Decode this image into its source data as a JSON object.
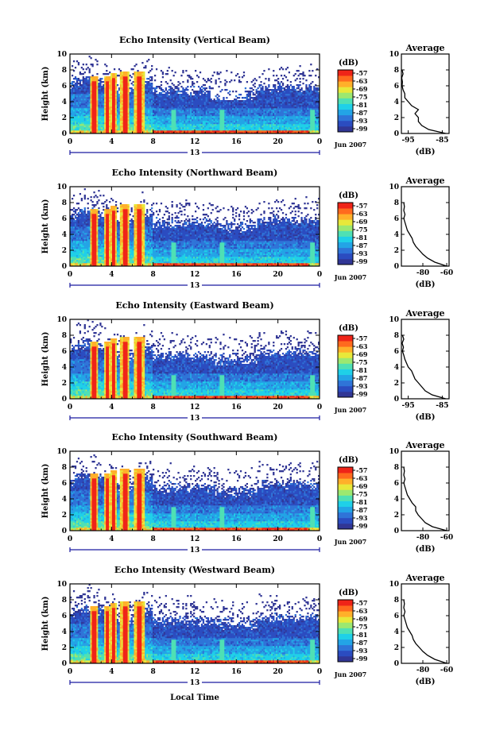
{
  "chart_data": [
    {
      "type": "heatmap",
      "title": "Echo Intensity (Vertical Beam)",
      "ylabel": "Height (km)",
      "ylim": [
        0,
        10
      ],
      "y_ticks": [
        "0",
        "2",
        "4",
        "6",
        "8",
        "10"
      ],
      "x_ticks": [
        "0",
        "4",
        "8",
        "12",
        "16",
        "20",
        "0"
      ],
      "date_day": "13",
      "date_label": "Jun 2007",
      "colorbar": {
        "unit": "(dB)",
        "ticks": [
          "-57",
          "-63",
          "-69",
          "-75",
          "-81",
          "-87",
          "-93",
          "-99"
        ]
      },
      "profile": {
        "title": "Average",
        "xlabel": "(dB)",
        "x_ticks": [
          "-95",
          "-85"
        ],
        "xlim": [
          -97,
          -83
        ],
        "heights": [
          0,
          0.5,
          1,
          1.5,
          2,
          2.5,
          3,
          3.5,
          4,
          4.5,
          5,
          5.5,
          6,
          6.5,
          7,
          7.5,
          8
        ],
        "values": [
          -84,
          -89,
          -91,
          -92,
          -92,
          -93,
          -92,
          -94,
          -95,
          -96,
          -96,
          -96.5,
          -96.8,
          -96.7,
          -96.9,
          -96.5,
          -96.8
        ]
      }
    },
    {
      "type": "heatmap",
      "title": "Echo Intensity (Northward Beam)",
      "ylabel": "Height (km)",
      "ylim": [
        0,
        10
      ],
      "y_ticks": [
        "0",
        "2",
        "4",
        "6",
        "8",
        "10"
      ],
      "x_ticks": [
        "0",
        "4",
        "8",
        "12",
        "16",
        "20",
        "0"
      ],
      "date_day": "13",
      "date_label": "Jun 2007",
      "colorbar": {
        "unit": "(dB)",
        "ticks": [
          "-57",
          "-63",
          "-69",
          "-75",
          "-81",
          "-87",
          "-93",
          "-99"
        ]
      },
      "profile": {
        "title": "Average",
        "xlabel": "(dB)",
        "x_ticks": [
          "-80",
          "-60"
        ],
        "xlim": [
          -98,
          -58
        ],
        "heights": [
          0,
          0.5,
          1,
          1.5,
          2,
          2.5,
          3,
          3.5,
          4,
          4.5,
          5,
          5.5,
          6,
          6.5,
          7,
          7.5,
          8
        ],
        "values": [
          -60,
          -70,
          -76,
          -80,
          -83,
          -86,
          -88,
          -89,
          -91,
          -93,
          -94,
          -95,
          -96,
          -95,
          -96,
          -95.5,
          -96
        ]
      }
    },
    {
      "type": "heatmap",
      "title": "Echo Intensity (Eastward Beam)",
      "ylabel": "Height (km)",
      "ylim": [
        0,
        10
      ],
      "y_ticks": [
        "0",
        "2",
        "4",
        "6",
        "8",
        "10"
      ],
      "x_ticks": [
        "0",
        "4",
        "8",
        "12",
        "16",
        "20",
        "0"
      ],
      "date_day": "13",
      "date_label": "Jun 2007",
      "colorbar": {
        "unit": "(dB)",
        "ticks": [
          "-57",
          "-63",
          "-69",
          "-75",
          "-81",
          "-87",
          "-93",
          "-99"
        ]
      },
      "profile": {
        "title": "Average",
        "xlabel": "(dB)",
        "x_ticks": [
          "-95",
          "-85"
        ],
        "xlim": [
          -97,
          -83
        ],
        "heights": [
          0,
          0.5,
          1,
          1.5,
          2,
          2.5,
          3,
          3.5,
          4,
          4.5,
          5,
          5.5,
          6,
          6.5,
          7,
          7.5,
          8
        ],
        "values": [
          -84,
          -88,
          -90,
          -91,
          -92,
          -93,
          -93.5,
          -94,
          -95,
          -95.5,
          -96,
          -96.3,
          -96.7,
          -96.4,
          -96.8,
          -96.3,
          -96.7
        ]
      }
    },
    {
      "type": "heatmap",
      "title": "Echo Intensity (Southward Beam)",
      "ylabel": "Height (km)",
      "ylim": [
        0,
        10
      ],
      "y_ticks": [
        "0",
        "2",
        "4",
        "6",
        "8",
        "10"
      ],
      "x_ticks": [
        "0",
        "4",
        "8",
        "12",
        "16",
        "20",
        "0"
      ],
      "date_day": "13",
      "date_label": "Jun 2007",
      "colorbar": {
        "unit": "(dB)",
        "ticks": [
          "-57",
          "-63",
          "-69",
          "-75",
          "-81",
          "-87",
          "-93",
          "-99"
        ]
      },
      "profile": {
        "title": "Average",
        "xlabel": "(dB)",
        "x_ticks": [
          "-80",
          "-60"
        ],
        "xlim": [
          -98,
          -58
        ],
        "heights": [
          0,
          0.5,
          1,
          1.5,
          2,
          2.5,
          3,
          3.5,
          4,
          4.5,
          5,
          5.5,
          6,
          6.5,
          7,
          7.5,
          8
        ],
        "values": [
          -60,
          -72,
          -78,
          -81,
          -84,
          -86,
          -86,
          -89,
          -91,
          -93,
          -94,
          -95,
          -96,
          -95,
          -96,
          -95.5,
          -96
        ]
      }
    },
    {
      "type": "heatmap",
      "title": "Echo Intensity (Westward Beam)",
      "ylabel": "Height (km)",
      "ylim": [
        0,
        10
      ],
      "y_ticks": [
        "0",
        "2",
        "4",
        "6",
        "8",
        "10"
      ],
      "x_ticks": [
        "0",
        "4",
        "8",
        "12",
        "16",
        "20",
        "0"
      ],
      "date_day": "13",
      "date_label": "Jun 2007",
      "xlabel": "Local Time",
      "colorbar": {
        "unit": "(dB)",
        "ticks": [
          "-57",
          "-63",
          "-69",
          "-75",
          "-81",
          "-87",
          "-93",
          "-99"
        ]
      },
      "profile": {
        "title": "Average",
        "xlabel": "(dB)",
        "x_ticks": [
          "-80",
          "-60"
        ],
        "xlim": [
          -98,
          -58
        ],
        "heights": [
          0,
          0.5,
          1,
          1.5,
          2,
          2.5,
          3,
          3.5,
          4,
          4.5,
          5,
          5.5,
          6,
          6.5,
          7,
          7.5,
          8
        ],
        "values": [
          -60,
          -70,
          -76,
          -80,
          -83,
          -86,
          -88,
          -89,
          -91,
          -93,
          -94,
          -95,
          -96,
          -95,
          -96,
          -95.5,
          -96
        ]
      }
    }
  ],
  "colors": [
    "#313695",
    "#2b4cc0",
    "#2f74d8",
    "#23a4e6",
    "#1fd0e8",
    "#4fe0b4",
    "#9ce870",
    "#e8e83a",
    "#ffb02a",
    "#ff6a1e",
    "#ef2418"
  ]
}
